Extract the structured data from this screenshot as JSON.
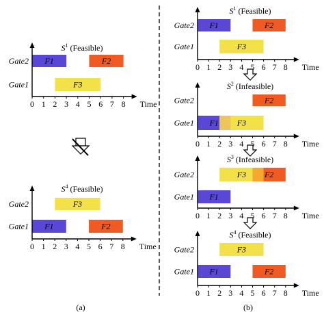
{
  "labels": {
    "time": "Time",
    "gate2": "Gate2",
    "gate1": "Gate1",
    "feasible": "(Feasible)",
    "infeasible": "(Infeasible)",
    "s": "S",
    "panel_a": "(a)",
    "panel_b": "(b)",
    "ticks": [
      "0",
      "1",
      "2",
      "3",
      "4",
      "5",
      "6",
      "7",
      "8"
    ]
  },
  "colors": {
    "F1": "#5b47d6",
    "F2": "#ef5b22",
    "F3": "#f3e14a",
    "overlap_F1_F3": "#ecc65a",
    "overlap_F3_F2": "#f5a831",
    "axis": "#000000",
    "divider": "#000000"
  },
  "icons": {
    "not_implies": "down-arrow-with-strike-icon",
    "step": "hollow-down-arrow-icon"
  },
  "diagrams": [
    {
      "id": "a-s1",
      "panel": "a",
      "state_index": "1",
      "status": "(Feasible)",
      "bars": [
        {
          "flight": "F1",
          "gate": "Gate2",
          "start": 0,
          "end": 3.0
        },
        {
          "flight": "F2",
          "gate": "Gate2",
          "start": 5.0,
          "end": 8.0
        },
        {
          "flight": "F3",
          "gate": "Gate1",
          "start": 2.0,
          "end": 6.0
        }
      ]
    },
    {
      "id": "a-s4",
      "panel": "a",
      "state_index": "4",
      "status": "(Feasible)",
      "bars": [
        {
          "flight": "F3",
          "gate": "Gate2",
          "start": 2.0,
          "end": 6.0
        },
        {
          "flight": "F1",
          "gate": "Gate1",
          "start": 0,
          "end": 3.0
        },
        {
          "flight": "F2",
          "gate": "Gate1",
          "start": 5.0,
          "end": 8.0
        }
      ]
    },
    {
      "id": "b-s1",
      "panel": "b",
      "state_index": "1",
      "status": "(Feasible)",
      "bars": [
        {
          "flight": "F1",
          "gate": "Gate2",
          "start": 0,
          "end": 3.0
        },
        {
          "flight": "F2",
          "gate": "Gate2",
          "start": 5.0,
          "end": 8.0
        },
        {
          "flight": "F3",
          "gate": "Gate1",
          "start": 2.0,
          "end": 6.0
        }
      ]
    },
    {
      "id": "b-s2",
      "panel": "b",
      "state_index": "2",
      "status": "(Infeasible)",
      "bars": [
        {
          "flight": "F2",
          "gate": "Gate2",
          "start": 5.0,
          "end": 8.0
        },
        {
          "flight": "F1",
          "gate": "Gate1",
          "start": 0,
          "end": 3.0
        },
        {
          "flight": "F3",
          "gate": "Gate1",
          "start": 2.0,
          "end": 6.0
        }
      ],
      "overlaps": [
        {
          "gate": "Gate1",
          "start": 2.0,
          "end": 3.0,
          "color_key": "overlap_F1_F3"
        }
      ]
    },
    {
      "id": "b-s3",
      "panel": "b",
      "state_index": "3",
      "status": "(Infeasible)",
      "bars": [
        {
          "flight": "F3",
          "gate": "Gate2",
          "start": 2.0,
          "end": 6.0
        },
        {
          "flight": "F2",
          "gate": "Gate2",
          "start": 5.0,
          "end": 8.0
        },
        {
          "flight": "F1",
          "gate": "Gate1",
          "start": 0,
          "end": 3.0
        }
      ],
      "overlaps": [
        {
          "gate": "Gate2",
          "start": 5.0,
          "end": 6.0,
          "color_key": "overlap_F3_F2"
        }
      ]
    },
    {
      "id": "b-s4",
      "panel": "b",
      "state_index": "4",
      "status": "(Feasible)",
      "bars": [
        {
          "flight": "F3",
          "gate": "Gate2",
          "start": 2.0,
          "end": 6.0
        },
        {
          "flight": "F1",
          "gate": "Gate1",
          "start": 0,
          "end": 3.0
        },
        {
          "flight": "F2",
          "gate": "Gate1",
          "start": 5.0,
          "end": 8.0
        }
      ]
    }
  ]
}
